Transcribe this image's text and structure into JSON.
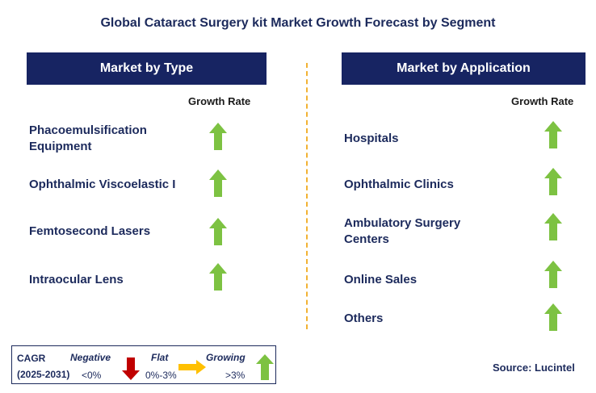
{
  "title": "Global Cataract Surgery kit Market Growth Forecast by Segment",
  "left": {
    "header": "Market by Type",
    "growth_rate_label": "Growth Rate",
    "rows": [
      {
        "label": "Phacoemulsification Equipment",
        "trend": "growing"
      },
      {
        "label": "Ophthalmic Viscoelastic I",
        "trend": "growing"
      },
      {
        "label": "Femtosecond Lasers",
        "trend": "growing"
      },
      {
        "label": "Intraocular Lens",
        "trend": "growing"
      }
    ]
  },
  "right": {
    "header": "Market by Application",
    "growth_rate_label": "Growth Rate",
    "rows": [
      {
        "label": "Hospitals",
        "trend": "growing"
      },
      {
        "label": "Ophthalmic Clinics",
        "trend": "growing"
      },
      {
        "label": "Ambulatory Surgery Centers",
        "trend": "growing"
      },
      {
        "label": "Online Sales",
        "trend": "growing"
      },
      {
        "label": "Others",
        "trend": "growing"
      }
    ]
  },
  "legend": {
    "cagr": "CAGR",
    "period": "(2025-2031)",
    "negative_label": "Negative",
    "negative_range": "<0%",
    "flat_label": "Flat",
    "flat_range": "0%-3%",
    "growing_label": "Growing",
    "growing_range": ">3%"
  },
  "source": "Source: Lucintel",
  "colors": {
    "header_bg": "#172462",
    "growing": "#7dc242",
    "negative": "#c00000",
    "flat": "#ffc000",
    "divider": "#f2b233"
  }
}
